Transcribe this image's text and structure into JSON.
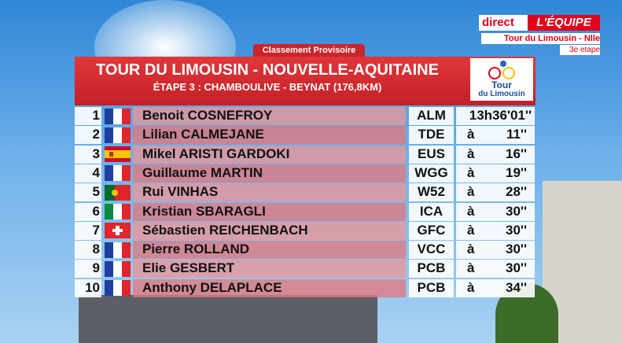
{
  "broadcast": {
    "direct": "direct",
    "channel": "L'ÉQUIPE",
    "event": "Tour du Limousin - Nlle Aquitaine",
    "stage": "3e etape"
  },
  "badge": "Classement Provisoire",
  "header": {
    "title": "TOUR DU LIMOUSIN - NOUVELLE-AQUITAINE",
    "subtitle": "ÉTAPE 3 : CHAMBOULIVE - BEYNAT (176,8KM)",
    "logo_top": "Tour",
    "logo_bottom": "du Limousin"
  },
  "rows": [
    {
      "rank": 1,
      "name": "Benoit COSNEFROY",
      "team": "ALM",
      "time": "13h36'01''"
    },
    {
      "rank": 2,
      "name": "Lilian CALMEJANE",
      "team": "TDE",
      "prefix": "à",
      "time": "11''"
    },
    {
      "rank": 3,
      "name": "Mikel ARISTI GARDOKI",
      "team": "EUS",
      "prefix": "à",
      "time": "16''"
    },
    {
      "rank": 4,
      "name": "Guillaume MARTIN",
      "team": "WGG",
      "prefix": "à",
      "time": "19''"
    },
    {
      "rank": 5,
      "name": "Rui VINHAS",
      "team": "W52",
      "prefix": "à",
      "time": "28''"
    },
    {
      "rank": 6,
      "name": "Kristian SBARAGLI",
      "team": "ICA",
      "prefix": "à",
      "time": "30''"
    },
    {
      "rank": 7,
      "name": "Sébastien REICHENBACH",
      "team": "GFC",
      "prefix": "à",
      "time": "30''"
    },
    {
      "rank": 8,
      "name": "Pierre ROLLAND",
      "team": "VCC",
      "prefix": "à",
      "time": "30''"
    },
    {
      "rank": 9,
      "name": "Elie GESBERT",
      "team": "PCB",
      "prefix": "à",
      "time": "30''"
    },
    {
      "rank": 10,
      "name": "Anthony DELAPLACE",
      "team": "PCB",
      "prefix": "à",
      "time": "34''"
    }
  ]
}
